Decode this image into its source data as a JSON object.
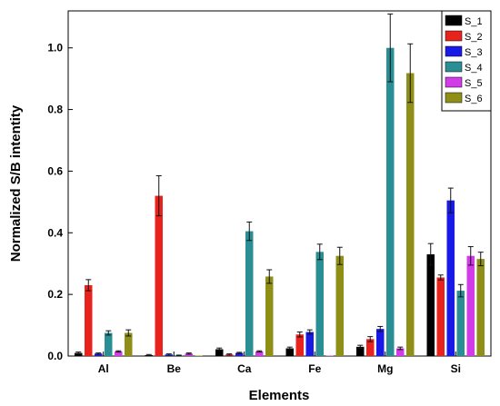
{
  "chart_data": {
    "type": "bar",
    "xlabel": "Elements",
    "ylabel": "Normalized S/B intentity",
    "categories": [
      "Al",
      "Be",
      "Ca",
      "Fe",
      "Mg",
      "Si"
    ],
    "ylim": [
      0,
      1.12
    ],
    "yticks": [
      "0.0",
      "0.2",
      "0.4",
      "0.6",
      "0.8",
      "1.0"
    ],
    "legend_position": "top-right",
    "grid": false,
    "series": [
      {
        "name": "S_1",
        "color": "#000000",
        "values": [
          0.01,
          0.003,
          0.022,
          0.025,
          0.03,
          0.33
        ],
        "errors": [
          0.003,
          0.002,
          0.004,
          0.004,
          0.005,
          0.035
        ]
      },
      {
        "name": "S_2",
        "color": "#e8231e",
        "values": [
          0.23,
          0.52,
          0.005,
          0.07,
          0.055,
          0.255
        ],
        "errors": [
          0.018,
          0.065,
          0.002,
          0.008,
          0.008,
          0.008
        ]
      },
      {
        "name": "S_3",
        "color": "#1a1ae6",
        "values": [
          0.008,
          0.005,
          0.01,
          0.078,
          0.088,
          0.505
        ],
        "errors": [
          0.002,
          0.002,
          0.002,
          0.007,
          0.008,
          0.04
        ]
      },
      {
        "name": "S_4",
        "color": "#2a8f95",
        "values": [
          0.075,
          0.002,
          0.405,
          0.338,
          1.0,
          0.212
        ],
        "errors": [
          0.007,
          0.001,
          0.03,
          0.025,
          0.11,
          0.02
        ]
      },
      {
        "name": "S_5",
        "color": "#d23ce8",
        "values": [
          0.015,
          0.008,
          0.015,
          0.0,
          0.025,
          0.325
        ],
        "errors": [
          0.002,
          0.002,
          0.002,
          0.0,
          0.004,
          0.03
        ]
      },
      {
        "name": "S_6",
        "color": "#8f8f17",
        "values": [
          0.075,
          0.0,
          0.258,
          0.325,
          0.918,
          0.315
        ],
        "errors": [
          0.01,
          0.0,
          0.022,
          0.028,
          0.095,
          0.022
        ]
      }
    ]
  }
}
